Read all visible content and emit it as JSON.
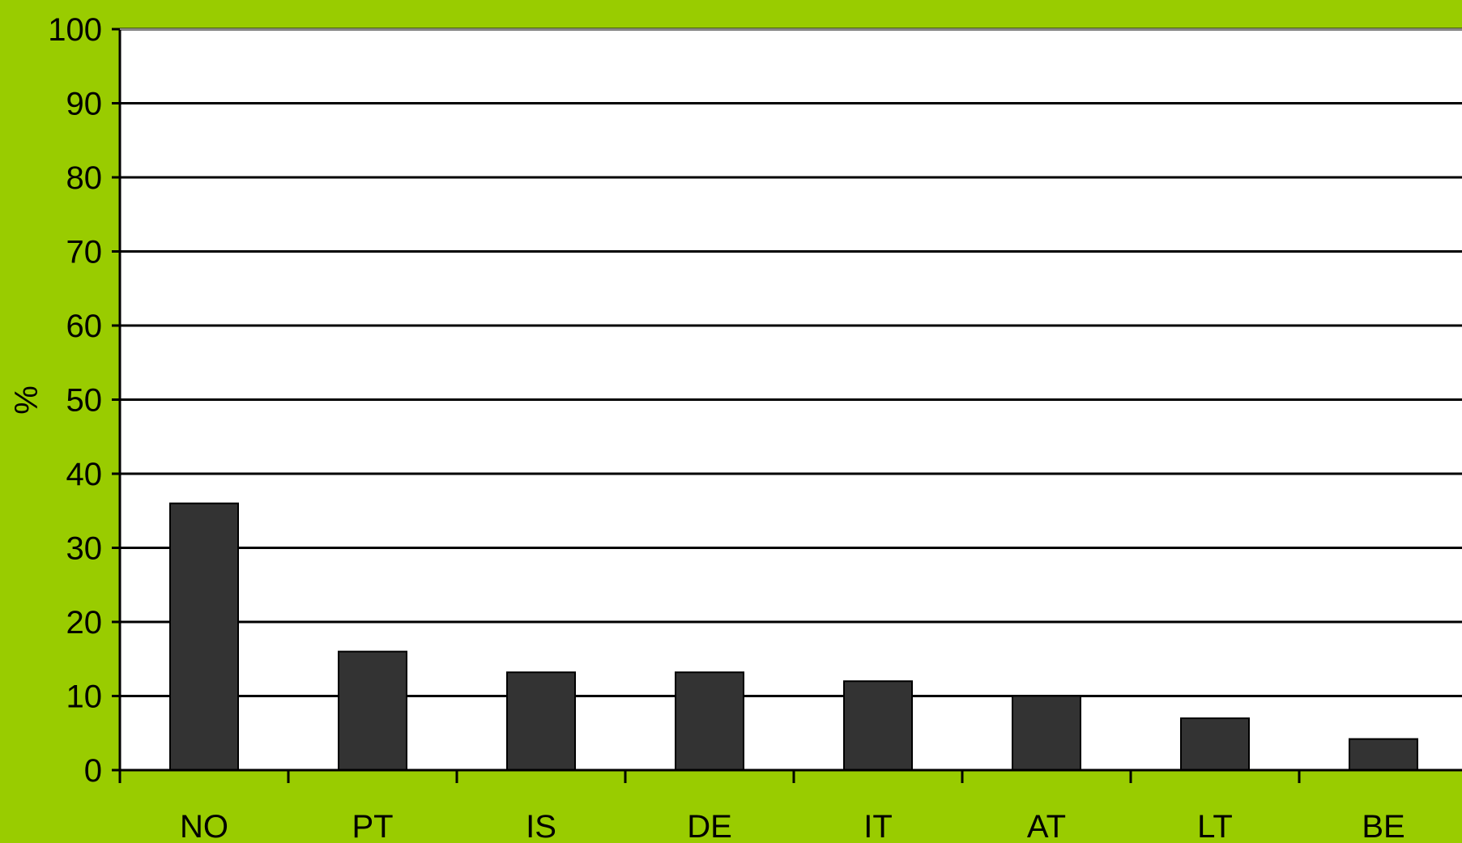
{
  "chart_data": {
    "type": "bar",
    "categories": [
      "NO",
      "PT",
      "IS",
      "DE",
      "IT",
      "AT",
      "LT",
      "BE"
    ],
    "values": [
      36,
      16,
      13.2,
      13.2,
      12,
      10,
      7,
      4.2
    ],
    "title": "",
    "xlabel": "",
    "ylabel": "%",
    "ylim": [
      0,
      100
    ],
    "yticks": [
      0,
      10,
      20,
      30,
      40,
      50,
      60,
      70,
      80,
      90,
      100
    ],
    "grid": true,
    "colors": {
      "background": "#99cc00",
      "plot_area": "#ffffff",
      "bar": "#333333",
      "grid": "#000000"
    }
  }
}
